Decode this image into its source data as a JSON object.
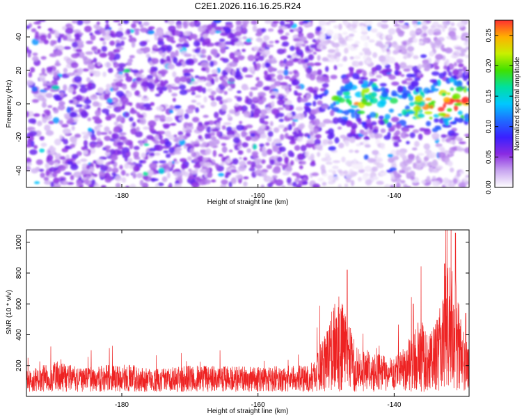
{
  "title": "C2E1.2026.116.16.25.R24",
  "chart_data": [
    {
      "type": "heatmap",
      "xlabel": "Height of straight line (km)",
      "ylabel": "Frequency (Hz)",
      "xlim": [
        -194,
        -129
      ],
      "ylim": [
        -50,
        50
      ],
      "xticks": [
        -180,
        -160,
        -140
      ],
      "xtick_labels": [
        "-180",
        "-160",
        "-140"
      ],
      "yticks": [
        -40,
        -20,
        0,
        20,
        40
      ],
      "ytick_labels": [
        "-40",
        "-20",
        "0",
        "20",
        "40"
      ],
      "colorbar": {
        "label": "Normalized spectral amplitude",
        "range": [
          0,
          0.275
        ],
        "ticks": [
          0,
          0.05,
          0.1,
          0.15,
          0.2,
          0.25
        ],
        "tick_labels": [
          "0.00",
          "0.05",
          "0.10",
          "0.15",
          "0.20",
          "0.25"
        ],
        "colors": [
          "#ffffff",
          "#c9a6f0",
          "#8a2be2",
          "#3a20ff",
          "#1f6bff",
          "#00c8ff",
          "#00e0a0",
          "#40e000",
          "#c8f000",
          "#ffb000",
          "#ff3030"
        ]
      },
      "features": [
        {
          "height_km": -145,
          "freq_hz": 2,
          "amplitude": 0.2
        },
        {
          "height_km": -131,
          "freq_hz": 2,
          "amplitude": 0.27
        },
        {
          "height_km": -136,
          "freq_hz": -3,
          "amplitude": 0.15
        }
      ],
      "background_amplitude": 0.05
    },
    {
      "type": "line",
      "xlabel": "Height of straight line (km)",
      "ylabel": "SNR (10 * v/v)",
      "xlim": [
        -194,
        -129
      ],
      "ylim": [
        0,
        1080
      ],
      "xticks": [
        -180,
        -160,
        -140
      ],
      "xtick_labels": [
        "-180",
        "-160",
        "-140"
      ],
      "yticks": [
        200,
        400,
        600,
        800,
        1000
      ],
      "ytick_labels": [
        "200",
        "400",
        "600",
        "800",
        "1000"
      ],
      "color": "#ee2222",
      "series": {
        "name": "SNR",
        "x": [
          -194,
          -190,
          -185,
          -180,
          -175,
          -170,
          -165,
          -160,
          -155,
          -152,
          -151,
          -150,
          -149,
          -148,
          -147,
          -146,
          -145,
          -144,
          -143,
          -142,
          -141,
          -140,
          -139,
          -138,
          -137,
          -136,
          -135,
          -134,
          -133,
          -132,
          -131,
          -130,
          -129
        ],
        "y": [
          120,
          170,
          140,
          160,
          130,
          150,
          145,
          140,
          150,
          155,
          260,
          360,
          480,
          560,
          420,
          320,
          260,
          240,
          210,
          230,
          200,
          190,
          230,
          290,
          360,
          420,
          330,
          400,
          560,
          760,
          620,
          380,
          260
        ],
        "peaks": [
          {
            "x": -146.9,
            "y": 820
          },
          {
            "x": -132.6,
            "y": 860
          },
          {
            "x": -131.0,
            "y": 1060
          },
          {
            "x": -137.2,
            "y": 600
          },
          {
            "x": -129.5,
            "y": 540
          }
        ]
      }
    }
  ]
}
